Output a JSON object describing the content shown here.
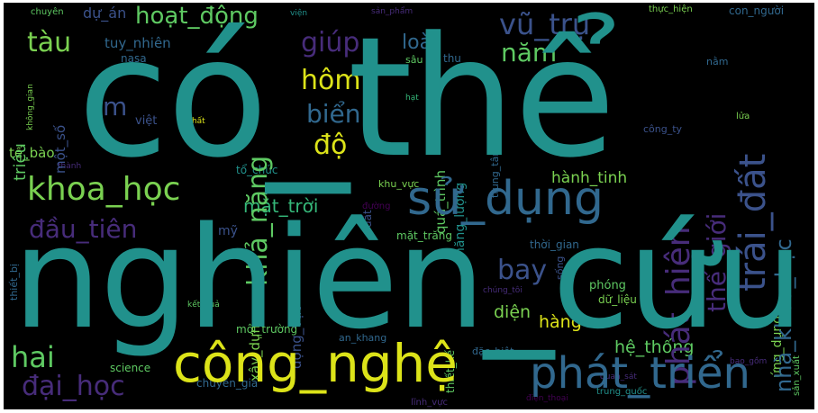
{
  "palette": {
    "teal": "#21918c",
    "teal_light": "#2a9d8f",
    "blue": "#3b528b",
    "slate": "#31688e",
    "purple": "#440154",
    "indigo": "#472c7a",
    "green": "#5ec962",
    "green_light": "#7ad151",
    "yellow": "#dce319",
    "yellow_green": "#b5de2b",
    "aqua": "#35b779",
    "background": "#000000"
  },
  "words": {
    "co_the": "có_thể",
    "nghien_cuu": "nghiên_cứu",
    "cong_nghe": "công_nghệ",
    "phat_trien": "phát_triển",
    "su_dung": "sử_dụng",
    "khoa_hoc": "khoa_học",
    "tau": "tàu",
    "giup": "giúp",
    "hom": "hôm",
    "do": "độ",
    "bien": "biển",
    "hoat_dong": "hoạt_động",
    "loai": "loài",
    "vu_tru": "vũ_trụ",
    "nam": "năm",
    "hai": "hai",
    "dai_hoc": "đại_học",
    "bay": "bay",
    "dau_tien": "đầu_tiên",
    "mat_troi": "mặt_trời",
    "kha_nang": "khả_năng",
    "trai_dat": "trái_đất",
    "phat_hien": "phát_hiện",
    "the_gioi": "thế_giới",
    "nha_khoa_hoc": "nhà_khoa_học",
    "ung_dung": "ứng_dụng",
    "hanh_tinh": "hành_tinh",
    "he_thong": "hệ_thống",
    "m": "m",
    "trieu": "triệu",
    "te_bao": "tế_bào",
    "viet": "việt",
    "tuy_nhien": "tuy_nhiên",
    "nasa": "nasa",
    "du_an": "dự_án",
    "chuyen": "chuyên",
    "mot_so": "một_số",
    "qua_trinh": "quá_trình",
    "nang_luong": "năng_lượng",
    "cong_ty": "công_ty",
    "trung_tam": "trung_tâm",
    "thoi_gian": "thời_gian",
    "mat_trang": "mặt_trăng",
    "xay_dung": "xây_dựng",
    "dong_vat": "động_vật",
    "my": "mỹ",
    "to_chuc": "tổ_chức",
    "khu_vuc": "khu_vực",
    "dien": "diện",
    "hang": "hàng",
    "phong": "phóng",
    "du_lieu": "dữ_liệu",
    "moi_truong": "môi_trường",
    "an_khang": "an_khang",
    "science": "science",
    "chuyen_gia": "chuyên_gia",
    "trung_quoc": "trung_quốc",
    "linh_vuc": "lĩnh_vực",
    "dac_biet": "đặc_biệt",
    "thiet_ke": "thiết_kế",
    "thiet_bi": "thiết_bị",
    "thanh": "thành",
    "nam2": "nằm",
    "sau": "sâu",
    "thu": "thu",
    "con_nguoi": "con_người",
    "thuc_hien": "thực_hiện",
    "san_pham": "sản_phẩm",
    "vien": "viện",
    "hat": "hạt",
    "chat": "chất",
    "lua": "lửa",
    "song": "sống",
    "bao_gom": "bao_gồm",
    "san_xuat": "sản_xuất",
    "dien_thoai": "điện_thoại",
    "quan_sat": "quan_sát",
    "ket_qua": "kết_quả",
    "chung_toi": "chúng_tôi",
    "duong": "đường",
    "dat": "đất",
    "khong_gian": "không_gian",
    "tong": "tổng",
    "sinh": "sinh",
    "ve_tinh": "vệ_tinh",
    "tre": "trẻ",
    "may": "máy"
  }
}
